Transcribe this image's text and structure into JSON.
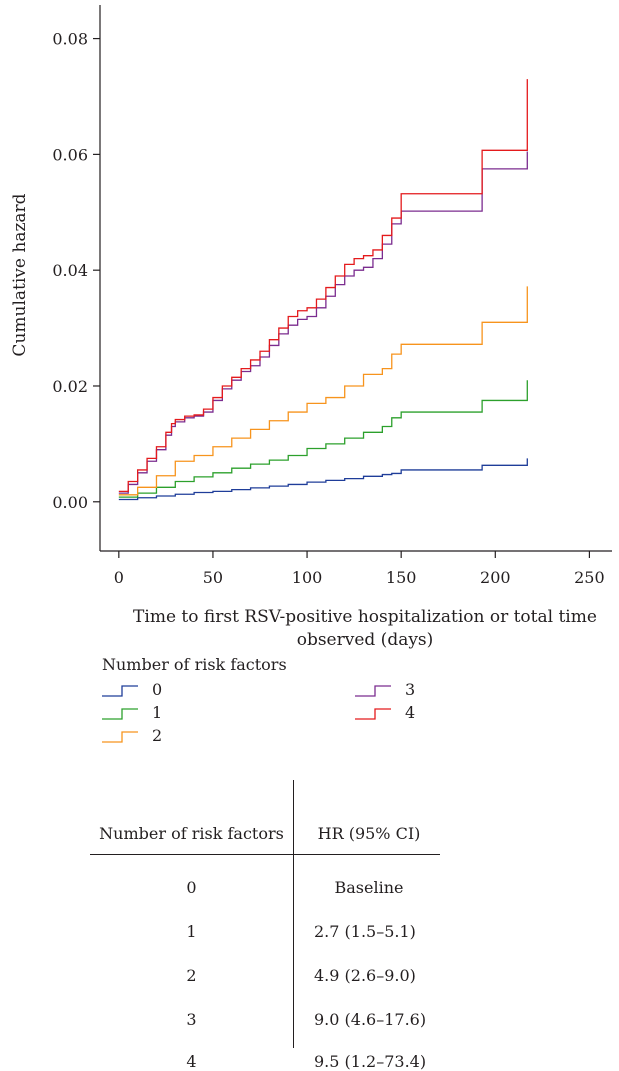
{
  "chart_data": {
    "type": "line",
    "line_style": "step",
    "xlabel": "Time to first RSV-positive hospitalization or total time observed (days)",
    "ylabel": "Cumulative hazard",
    "xlim": [
      -10,
      262
    ],
    "ylim": [
      -0.0085,
      0.0858
    ],
    "x_ticks": [
      0,
      50,
      100,
      150,
      200,
      250
    ],
    "x_tick_labels": [
      "0",
      "50",
      "100",
      "150",
      "200",
      "250"
    ],
    "y_ticks": [
      0.0,
      0.02,
      0.04,
      0.06,
      0.08
    ],
    "y_tick_labels": [
      "0.00",
      "0.02",
      "0.04",
      "0.06",
      "0.08"
    ],
    "grid": false,
    "legend_title": "Number of risk factors",
    "legend_placement": "below",
    "series": [
      {
        "name": "0",
        "color": "#1f3d99",
        "x": [
          0,
          10,
          20,
          30,
          40,
          50,
          60,
          70,
          80,
          90,
          100,
          110,
          120,
          130,
          140,
          145,
          150,
          160,
          170,
          180,
          193,
          200,
          210,
          217,
          217
        ],
        "y": [
          0.0004,
          0.0007,
          0.001,
          0.0013,
          0.0016,
          0.0018,
          0.0021,
          0.0024,
          0.0027,
          0.003,
          0.0034,
          0.0037,
          0.004,
          0.0044,
          0.0047,
          0.0049,
          0.0055,
          0.0055,
          0.0055,
          0.0055,
          0.0063,
          0.0063,
          0.0063,
          0.0065,
          0.0075
        ]
      },
      {
        "name": "1",
        "color": "#2ca02c",
        "x": [
          0,
          10,
          20,
          30,
          40,
          50,
          60,
          70,
          80,
          90,
          100,
          110,
          120,
          130,
          140,
          145,
          150,
          160,
          170,
          180,
          193,
          200,
          210,
          217,
          217
        ],
        "y": [
          0.0008,
          0.0015,
          0.0025,
          0.0035,
          0.0043,
          0.005,
          0.0058,
          0.0065,
          0.0072,
          0.008,
          0.0092,
          0.01,
          0.011,
          0.012,
          0.013,
          0.0145,
          0.0155,
          0.0155,
          0.0155,
          0.0155,
          0.0175,
          0.0175,
          0.0175,
          0.0175,
          0.021
        ]
      },
      {
        "name": "2",
        "color": "#f7941d",
        "x": [
          0,
          10,
          20,
          30,
          40,
          50,
          60,
          70,
          80,
          90,
          100,
          110,
          120,
          130,
          140,
          145,
          150,
          160,
          170,
          180,
          193,
          200,
          210,
          217,
          217
        ],
        "y": [
          0.0012,
          0.0025,
          0.0045,
          0.007,
          0.008,
          0.0095,
          0.011,
          0.0125,
          0.014,
          0.0155,
          0.017,
          0.018,
          0.02,
          0.022,
          0.023,
          0.0255,
          0.0272,
          0.0272,
          0.0272,
          0.0272,
          0.031,
          0.031,
          0.031,
          0.031,
          0.0372
        ]
      },
      {
        "name": "3",
        "color": "#7b2c8f",
        "x": [
          0,
          5,
          10,
          15,
          20,
          25,
          28,
          30,
          35,
          40,
          45,
          50,
          55,
          60,
          65,
          70,
          75,
          80,
          85,
          90,
          95,
          100,
          105,
          110,
          115,
          120,
          125,
          130,
          135,
          140,
          145,
          150,
          160,
          170,
          180,
          193,
          200,
          210,
          217,
          217
        ],
        "y": [
          0.0015,
          0.003,
          0.005,
          0.007,
          0.009,
          0.0115,
          0.013,
          0.0138,
          0.0145,
          0.0148,
          0.0155,
          0.0175,
          0.0195,
          0.021,
          0.0225,
          0.0235,
          0.025,
          0.027,
          0.029,
          0.0305,
          0.0315,
          0.032,
          0.0335,
          0.0355,
          0.0375,
          0.039,
          0.04,
          0.0405,
          0.042,
          0.0445,
          0.048,
          0.0502,
          0.0502,
          0.0502,
          0.0502,
          0.0575,
          0.0575,
          0.0575,
          0.0575,
          0.0605
        ]
      },
      {
        "name": "4",
        "color": "#e41a1c",
        "x": [
          0,
          5,
          10,
          15,
          20,
          25,
          28,
          30,
          35,
          40,
          45,
          50,
          55,
          60,
          65,
          70,
          75,
          80,
          85,
          90,
          95,
          100,
          105,
          110,
          115,
          120,
          125,
          130,
          135,
          140,
          145,
          150,
          160,
          170,
          180,
          193,
          200,
          210,
          217,
          217
        ],
        "y": [
          0.0018,
          0.0035,
          0.0055,
          0.0075,
          0.0095,
          0.012,
          0.0135,
          0.0142,
          0.0148,
          0.015,
          0.016,
          0.018,
          0.02,
          0.0215,
          0.023,
          0.0245,
          0.026,
          0.028,
          0.03,
          0.032,
          0.033,
          0.0335,
          0.035,
          0.037,
          0.039,
          0.041,
          0.042,
          0.0425,
          0.0435,
          0.046,
          0.049,
          0.0532,
          0.0532,
          0.0532,
          0.0532,
          0.0607,
          0.0607,
          0.0607,
          0.0607,
          0.073
        ]
      }
    ]
  },
  "table": {
    "headers": [
      "Number of risk factors",
      "HR (95% CI)"
    ],
    "rows": [
      [
        "0",
        "Baseline"
      ],
      [
        "1",
        "2.7 (1.5–5.1)"
      ],
      [
        "2",
        "4.9 (2.6–9.0)"
      ],
      [
        "3",
        "9.0 (4.6–17.6)"
      ],
      [
        "4",
        "9.5 (1.2–73.4)"
      ]
    ]
  }
}
